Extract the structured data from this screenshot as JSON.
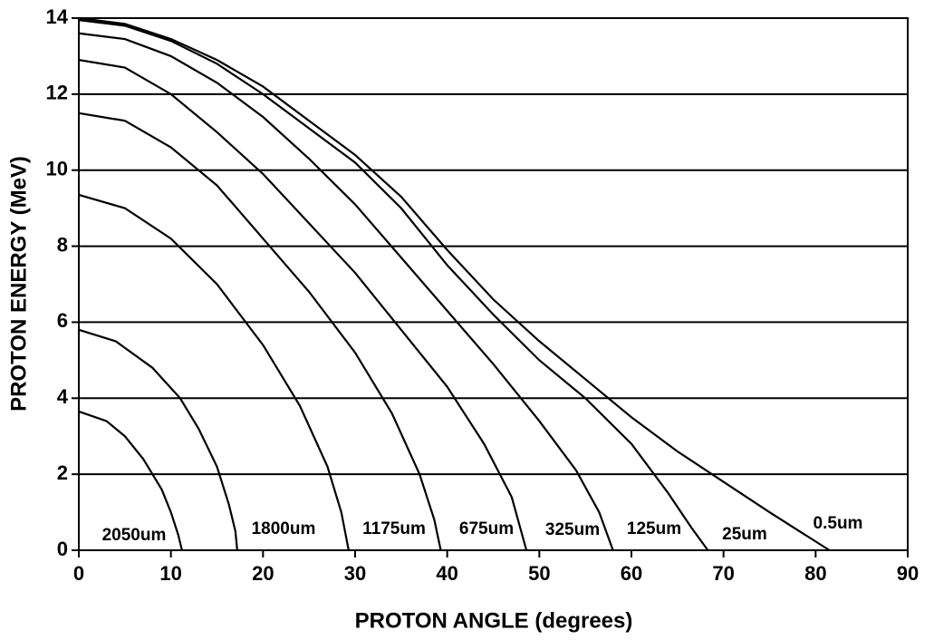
{
  "chart_data": {
    "type": "line",
    "xlabel": "PROTON ANGLE (degrees)",
    "ylabel": "PROTON ENERGY (MeV)",
    "xlim": [
      0,
      90
    ],
    "xticks": [
      0,
      10,
      20,
      30,
      40,
      50,
      60,
      70,
      80,
      90
    ],
    "ylim": [
      0,
      14
    ],
    "yticks": [
      0,
      2,
      4,
      6,
      8,
      10,
      12,
      14
    ],
    "grid": "y",
    "series": [
      {
        "name": "2050um",
        "color": "#000000",
        "x": [
          0,
          3,
          5,
          7,
          9,
          10,
          10.8,
          11.2
        ],
        "values": [
          3.65,
          3.4,
          3.0,
          2.4,
          1.6,
          1.0,
          0.4,
          0
        ]
      },
      {
        "name": "1800um",
        "color": "#000000",
        "x": [
          0,
          4,
          8,
          11,
          13,
          15,
          16.3,
          17,
          17.2
        ],
        "values": [
          5.8,
          5.5,
          4.8,
          4.0,
          3.2,
          2.2,
          1.2,
          0.5,
          0
        ]
      },
      {
        "name": "1175um",
        "color": "#000000",
        "x": [
          0,
          5,
          10,
          15,
          20,
          24,
          27,
          28.5,
          29.3
        ],
        "values": [
          9.35,
          9.0,
          8.2,
          7.0,
          5.4,
          3.8,
          2.2,
          1.0,
          0
        ]
      },
      {
        "name": "675um",
        "color": "#000000",
        "x": [
          0,
          5,
          10,
          15,
          20,
          25,
          30,
          34,
          37,
          38.6,
          39.3
        ],
        "values": [
          11.5,
          11.3,
          10.6,
          9.6,
          8.2,
          6.8,
          5.2,
          3.6,
          2.0,
          0.8,
          0
        ]
      },
      {
        "name": "325um",
        "color": "#000000",
        "x": [
          0,
          5,
          10,
          15,
          20,
          25,
          30,
          35,
          40,
          44,
          47,
          48.6
        ],
        "values": [
          12.9,
          12.7,
          12.0,
          11.0,
          9.9,
          8.6,
          7.3,
          5.8,
          4.3,
          2.8,
          1.4,
          0
        ]
      },
      {
        "name": "125um",
        "color": "#000000",
        "x": [
          0,
          5,
          10,
          15,
          20,
          25,
          30,
          35,
          40,
          45,
          50,
          54,
          56.5,
          58
        ],
        "values": [
          13.6,
          13.45,
          13.0,
          12.3,
          11.4,
          10.3,
          9.1,
          7.7,
          6.3,
          4.9,
          3.4,
          2.1,
          1.0,
          0
        ]
      },
      {
        "name": "25um",
        "color": "#000000",
        "x": [
          0,
          5,
          10,
          15,
          20,
          25,
          30,
          35,
          40,
          45,
          50,
          55,
          60,
          64,
          66.5,
          68.3
        ],
        "values": [
          13.95,
          13.8,
          13.4,
          12.8,
          12.0,
          11.1,
          10.2,
          9.0,
          7.5,
          6.2,
          5.0,
          4.0,
          2.8,
          1.5,
          0.6,
          0
        ]
      },
      {
        "name": "0.5um",
        "color": "#000000",
        "x": [
          0,
          5,
          10,
          15,
          20,
          25,
          30,
          35,
          40,
          45,
          50,
          55,
          60,
          65,
          70,
          75,
          81.5
        ],
        "values": [
          14,
          13.85,
          13.45,
          12.9,
          12.2,
          11.3,
          10.4,
          9.3,
          7.9,
          6.6,
          5.5,
          4.5,
          3.5,
          2.6,
          1.8,
          1.0,
          0
        ]
      }
    ]
  }
}
